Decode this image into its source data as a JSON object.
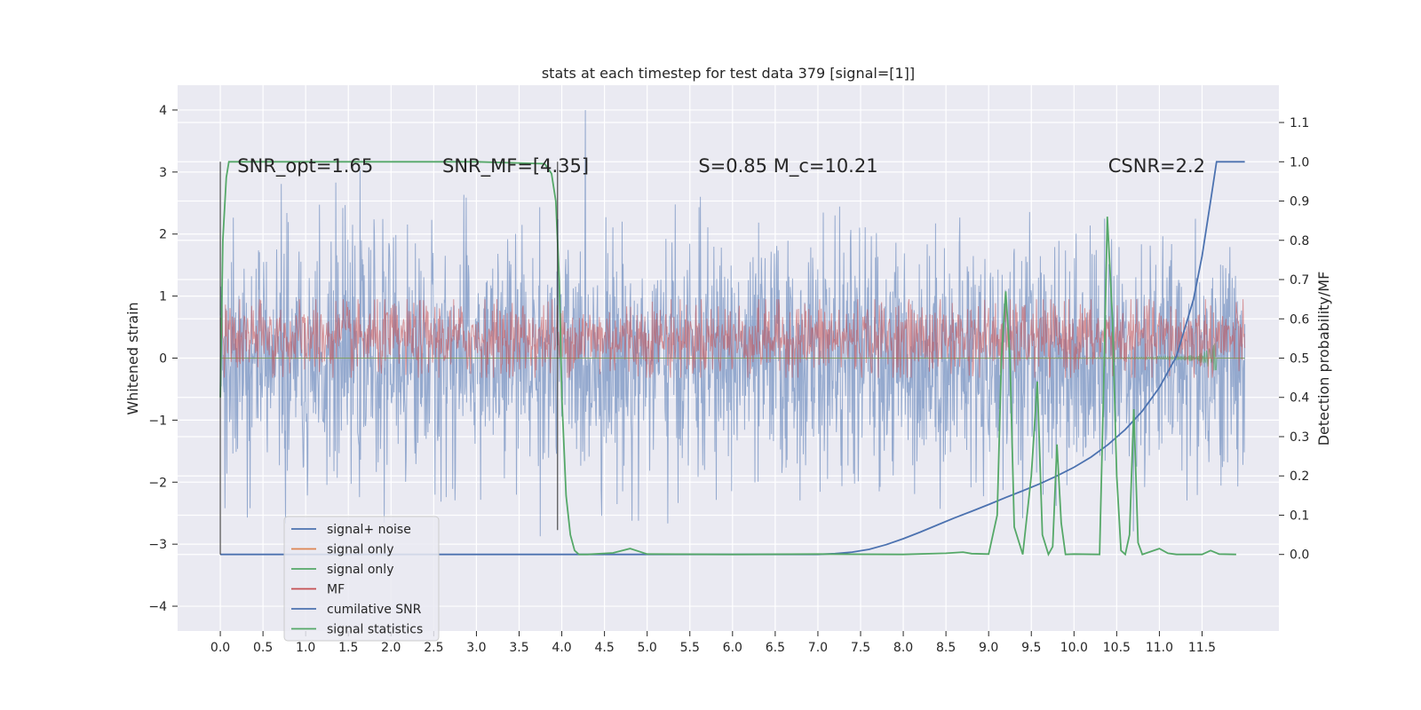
{
  "chart_data": {
    "type": "line",
    "title": "stats at each timestep for test data 379 [signal=[1]]",
    "xlabel": "",
    "ylabel": "Whitened strain",
    "y2label": "Detection probability/MF",
    "xlim": [
      -0.5,
      12.4
    ],
    "ylim": [
      -4.4,
      4.4
    ],
    "y2lim": [
      -0.195,
      1.195
    ],
    "x_ticks": [
      0.0,
      0.5,
      1.0,
      1.5,
      2.0,
      2.5,
      3.0,
      3.5,
      4.0,
      4.5,
      5.0,
      5.5,
      6.0,
      6.5,
      7.0,
      7.5,
      8.0,
      8.5,
      9.0,
      9.5,
      10.0,
      10.5,
      11.0,
      11.5
    ],
    "x_tick_labels": [
      "0.0",
      "0.5",
      "1.0",
      "1.5",
      "2.0",
      "2.5",
      "3.0",
      "3.5",
      "4.0",
      "4.5",
      "5.0",
      "5.5",
      "6.0",
      "6.5",
      "7.0",
      "7.5",
      "8.0",
      "8.5",
      "9.0",
      "9.5",
      "10.0",
      "10.5",
      "11.0",
      "11.5"
    ],
    "y_ticks": [
      -4,
      -3,
      -2,
      -1,
      0,
      1,
      2,
      3,
      4
    ],
    "y_tick_labels": [
      "−4",
      "−3",
      "−2",
      "−1",
      "0",
      "1",
      "2",
      "3",
      "4"
    ],
    "y2_ticks": [
      0.0,
      0.1,
      0.2,
      0.3,
      0.4,
      0.5,
      0.6,
      0.7,
      0.8,
      0.9,
      1.0,
      1.1
    ],
    "y2_tick_labels": [
      "0.0",
      "0.1",
      "0.2",
      "0.3",
      "0.4",
      "0.5",
      "0.6",
      "0.7",
      "0.8",
      "0.9",
      "1.0",
      "1.1"
    ],
    "grid": true,
    "legend_position": "lower-left",
    "annotations": [
      {
        "text": "SNR_opt=1.65",
        "x": 0.2,
        "y": 3.1
      },
      {
        "text": "SNR_MF=[4.35]",
        "x": 2.6,
        "y": 3.1
      },
      {
        "text": "S=0.85   M_c=10.21",
        "x": 5.6,
        "y": 3.1
      },
      {
        "text": "CSNR=2.2",
        "x": 10.4,
        "y": 3.1
      }
    ],
    "series": [
      {
        "name": "signal+ noise",
        "color": "#4c72b0",
        "axis": "left",
        "style": "noise",
        "x_range": [
          0.0,
          12.0
        ],
        "amplitude_typical": 2.0,
        "amplitude_max": 4.0
      },
      {
        "name": "signal only",
        "color": "#dd8452",
        "axis": "left",
        "style": "flat",
        "x_range": [
          0.0,
          12.0
        ],
        "value": 0.0
      },
      {
        "name": "signal only",
        "color": "#55a868",
        "axis": "left",
        "style": "chirp",
        "x_range": [
          0.0,
          12.0
        ],
        "peak_x": 11.65,
        "peak_amplitude": 0.35
      },
      {
        "name": "MF",
        "color": "#c44e52",
        "axis": "right",
        "style": "noise-band",
        "x_range": [
          0.0,
          12.0
        ],
        "center": 0.55,
        "amplitude_typical": 0.06,
        "amplitude_max": 0.1
      },
      {
        "name": "cumilative SNR",
        "color": "#4c72b0",
        "axis": "right",
        "x": [
          0.0,
          7.0,
          7.2,
          7.4,
          7.6,
          7.8,
          8.0,
          8.2,
          8.4,
          8.6,
          8.8,
          9.0,
          9.2,
          9.4,
          9.6,
          9.8,
          10.0,
          10.2,
          10.4,
          10.6,
          10.8,
          11.0,
          11.2,
          11.4,
          11.5,
          11.6,
          11.67,
          11.7,
          12.0
        ],
        "y": [
          0.0,
          0.0,
          0.002,
          0.006,
          0.013,
          0.025,
          0.04,
          0.057,
          0.075,
          0.093,
          0.11,
          0.127,
          0.145,
          0.162,
          0.18,
          0.2,
          0.222,
          0.248,
          0.28,
          0.318,
          0.365,
          0.425,
          0.505,
          0.65,
          0.76,
          0.9,
          1.0,
          1.0,
          1.0
        ]
      },
      {
        "name": "signal statistics",
        "color": "#55a868",
        "axis": "right",
        "x": [
          0.0,
          0.03,
          0.07,
          0.1,
          0.15,
          0.5,
          1.0,
          2.0,
          3.0,
          3.8,
          3.88,
          3.93,
          3.97,
          4.0,
          4.05,
          4.1,
          4.15,
          4.2,
          4.3,
          4.6,
          4.8,
          4.9,
          5.0,
          6.0,
          7.0,
          8.0,
          8.5,
          8.7,
          8.8,
          9.0,
          9.1,
          9.15,
          9.2,
          9.25,
          9.3,
          9.4,
          9.5,
          9.57,
          9.63,
          9.7,
          9.75,
          9.8,
          9.85,
          9.9,
          10.0,
          10.3,
          10.35,
          10.39,
          10.45,
          10.5,
          10.55,
          10.6,
          10.65,
          10.7,
          10.75,
          10.8,
          11.0,
          11.1,
          11.2,
          11.5,
          11.6,
          11.7,
          11.9
        ],
        "y": [
          0.4,
          0.8,
          0.96,
          1.0,
          1.0,
          1.0,
          1.0,
          1.0,
          1.0,
          0.995,
          0.97,
          0.9,
          0.7,
          0.4,
          0.15,
          0.05,
          0.01,
          0.0,
          0.0,
          0.004,
          0.015,
          0.008,
          0.001,
          0.0,
          0.001,
          0.0,
          0.003,
          0.006,
          0.002,
          0.001,
          0.1,
          0.5,
          0.67,
          0.5,
          0.07,
          0.0,
          0.2,
          0.44,
          0.05,
          0.0,
          0.02,
          0.28,
          0.08,
          0.0,
          0.001,
          0.0,
          0.45,
          0.86,
          0.6,
          0.2,
          0.01,
          0.0,
          0.05,
          0.37,
          0.03,
          0.0,
          0.015,
          0.003,
          0.0,
          0.0,
          0.01,
          0.001,
          0.0
        ]
      },
      {
        "name": "",
        "color": "#262626",
        "axis": "right",
        "style": "vline",
        "x": 0.0,
        "y_range": [
          0.0,
          1.0
        ]
      },
      {
        "name": "",
        "color": "#262626",
        "axis": "right",
        "style": "vline",
        "x": 3.95,
        "y_range": [
          0.062,
          1.0
        ]
      }
    ],
    "legend": [
      {
        "label": "signal+ noise",
        "color": "#4c72b0"
      },
      {
        "label": "signal only",
        "color": "#dd8452"
      },
      {
        "label": "signal only",
        "color": "#55a868"
      },
      {
        "label": "MF",
        "color": "#c44e52"
      },
      {
        "label": "cumilative SNR",
        "color": "#4c72b0"
      },
      {
        "label": "signal statistics",
        "color": "#55a868"
      }
    ],
    "colors": {
      "plot_background": "#eaeaf2",
      "grid": "#ffffff",
      "text": "#262626"
    }
  }
}
